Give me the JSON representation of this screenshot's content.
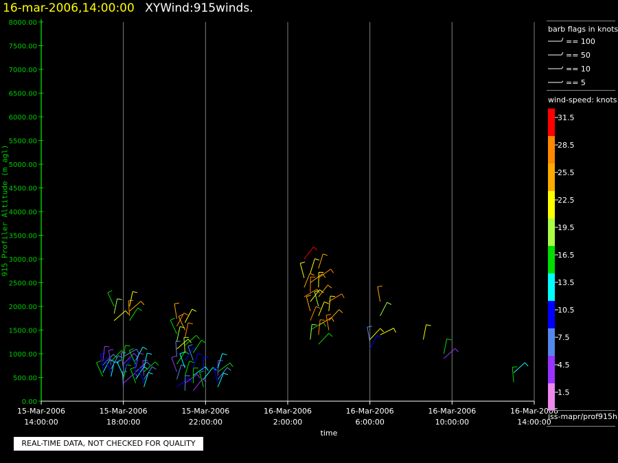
{
  "header": {
    "timestamp": "16-mar-2006,14:00:00",
    "product": "XYWind:915winds."
  },
  "chart_data": {
    "type": "scatter",
    "title": "XYWind:915winds.",
    "xlabel": "time",
    "ylabel": "915 Profiler Altitude (m agl)",
    "ylim": [
      0,
      8000
    ],
    "y_ticks": [
      "0.00",
      "500.00",
      "1000.00",
      "1500.00",
      "2000.00",
      "2500.00",
      "3000.00",
      "3500.00",
      "4000.00",
      "4500.00",
      "5000.00",
      "5500.00",
      "6000.00",
      "6500.00",
      "7000.00",
      "7500.00",
      "8000.00"
    ],
    "x_ticks": [
      {
        "date": "15-Mar-2006",
        "time": "14:00:00"
      },
      {
        "date": "15-Mar-2006",
        "time": "18:00:00"
      },
      {
        "date": "15-Mar-2006",
        "time": "22:00:00"
      },
      {
        "date": "16-Mar-2006",
        "time": "2:00:00"
      },
      {
        "date": "16-Mar-2006",
        "time": "6:00:00"
      },
      {
        "date": "16-Mar-2006",
        "time": "10:00:00"
      },
      {
        "date": "16-Mar-2006",
        "time": "14:00:00"
      }
    ],
    "xlim_hours": [
      0,
      24
    ],
    "grid": "vertical",
    "color_axis": {
      "colors": {
        "axis": "#00cc00",
        "ticks": "#ffffff",
        "grid": "#808080"
      }
    },
    "series": [
      {
        "hour": 3.0,
        "altitudes": [
          520,
          600,
          680,
          760,
          840
        ]
      },
      {
        "hour": 3.4,
        "altitudes": [
          520,
          600,
          680,
          760,
          840
        ]
      },
      {
        "hour": 3.55,
        "altitudes": [
          1700,
          1850,
          2000
        ]
      },
      {
        "hour": 4.0,
        "altitudes": [
          300,
          380,
          460,
          540,
          620,
          700,
          780,
          860,
          940
        ]
      },
      {
        "hour": 4.3,
        "altitudes": [
          1700,
          1800,
          1900,
          2000
        ]
      },
      {
        "hour": 4.6,
        "altitudes": [
          380,
          460,
          540,
          620,
          700,
          780,
          860
        ]
      },
      {
        "hour": 5.0,
        "altitudes": [
          300,
          380,
          460,
          540,
          620,
          700
        ]
      },
      {
        "hour": 6.6,
        "altitudes": [
          300,
          460,
          620,
          780,
          940,
          1100,
          1260,
          1420,
          1580,
          1740
        ]
      },
      {
        "hour": 7.0,
        "altitudes": [
          220,
          380,
          540,
          700,
          860,
          1020,
          1180,
          1340,
          1500,
          1660
        ]
      },
      {
        "hour": 7.4,
        "altitudes": [
          220,
          380,
          540,
          700,
          860,
          1020
        ]
      },
      {
        "hour": 7.9,
        "altitudes": [
          300,
          460,
          620
        ]
      },
      {
        "hour": 8.6,
        "altitudes": [
          300,
          380,
          460,
          540,
          620,
          700
        ]
      },
      {
        "hour": 12.8,
        "altitudes": [
          2200,
          2400,
          2600,
          3000
        ]
      },
      {
        "hour": 13.1,
        "altitudes": [
          1300,
          1500,
          1700,
          1900,
          2100,
          2300,
          2500,
          2700
        ]
      },
      {
        "hour": 13.5,
        "altitudes": [
          1200,
          1400,
          1600,
          1800,
          2000,
          2200,
          2400,
          2600,
          2800
        ]
      },
      {
        "hour": 14.0,
        "altitudes": [
          1500,
          1700,
          1900,
          2100
        ]
      },
      {
        "hour": 16.0,
        "altitudes": [
          1100,
          1250,
          1300
        ]
      },
      {
        "hour": 16.5,
        "altitudes": [
          1400,
          1800,
          2100
        ]
      },
      {
        "hour": 18.6,
        "altitudes": [
          1300
        ]
      },
      {
        "hour": 19.6,
        "altitudes": [
          900,
          1000
        ]
      },
      {
        "hour": 23.0,
        "altitudes": [
          400,
          600
        ]
      }
    ]
  },
  "legend": {
    "flags_title": "barb flags in knots",
    "flags": [
      "== 100",
      "== 50",
      "== 10",
      "== 5"
    ],
    "speed_title": "wind-speed: knots",
    "speed_bins": [
      {
        "label": "31.5",
        "color": "#ff0000"
      },
      {
        "label": "28.5",
        "color": "#ff8800"
      },
      {
        "label": "25.5",
        "color": "#ffaa00"
      },
      {
        "label": "22.5",
        "color": "#ffff00"
      },
      {
        "label": "19.5",
        "color": "#aaff44"
      },
      {
        "label": "16.5",
        "color": "#00dd00"
      },
      {
        "label": "13.5",
        "color": "#00ffff"
      },
      {
        "label": "10.5",
        "color": "#0000ff"
      },
      {
        "label": "7.5",
        "color": "#5588ee"
      },
      {
        "label": "4.5",
        "color": "#9933ff"
      },
      {
        "label": "1.5",
        "color": "#ee88ee"
      }
    ]
  },
  "footer": {
    "path": "iss-mapr/prof915h",
    "qc_note": "REAL-TIME DATA, NOT CHECKED FOR QUALITY"
  }
}
